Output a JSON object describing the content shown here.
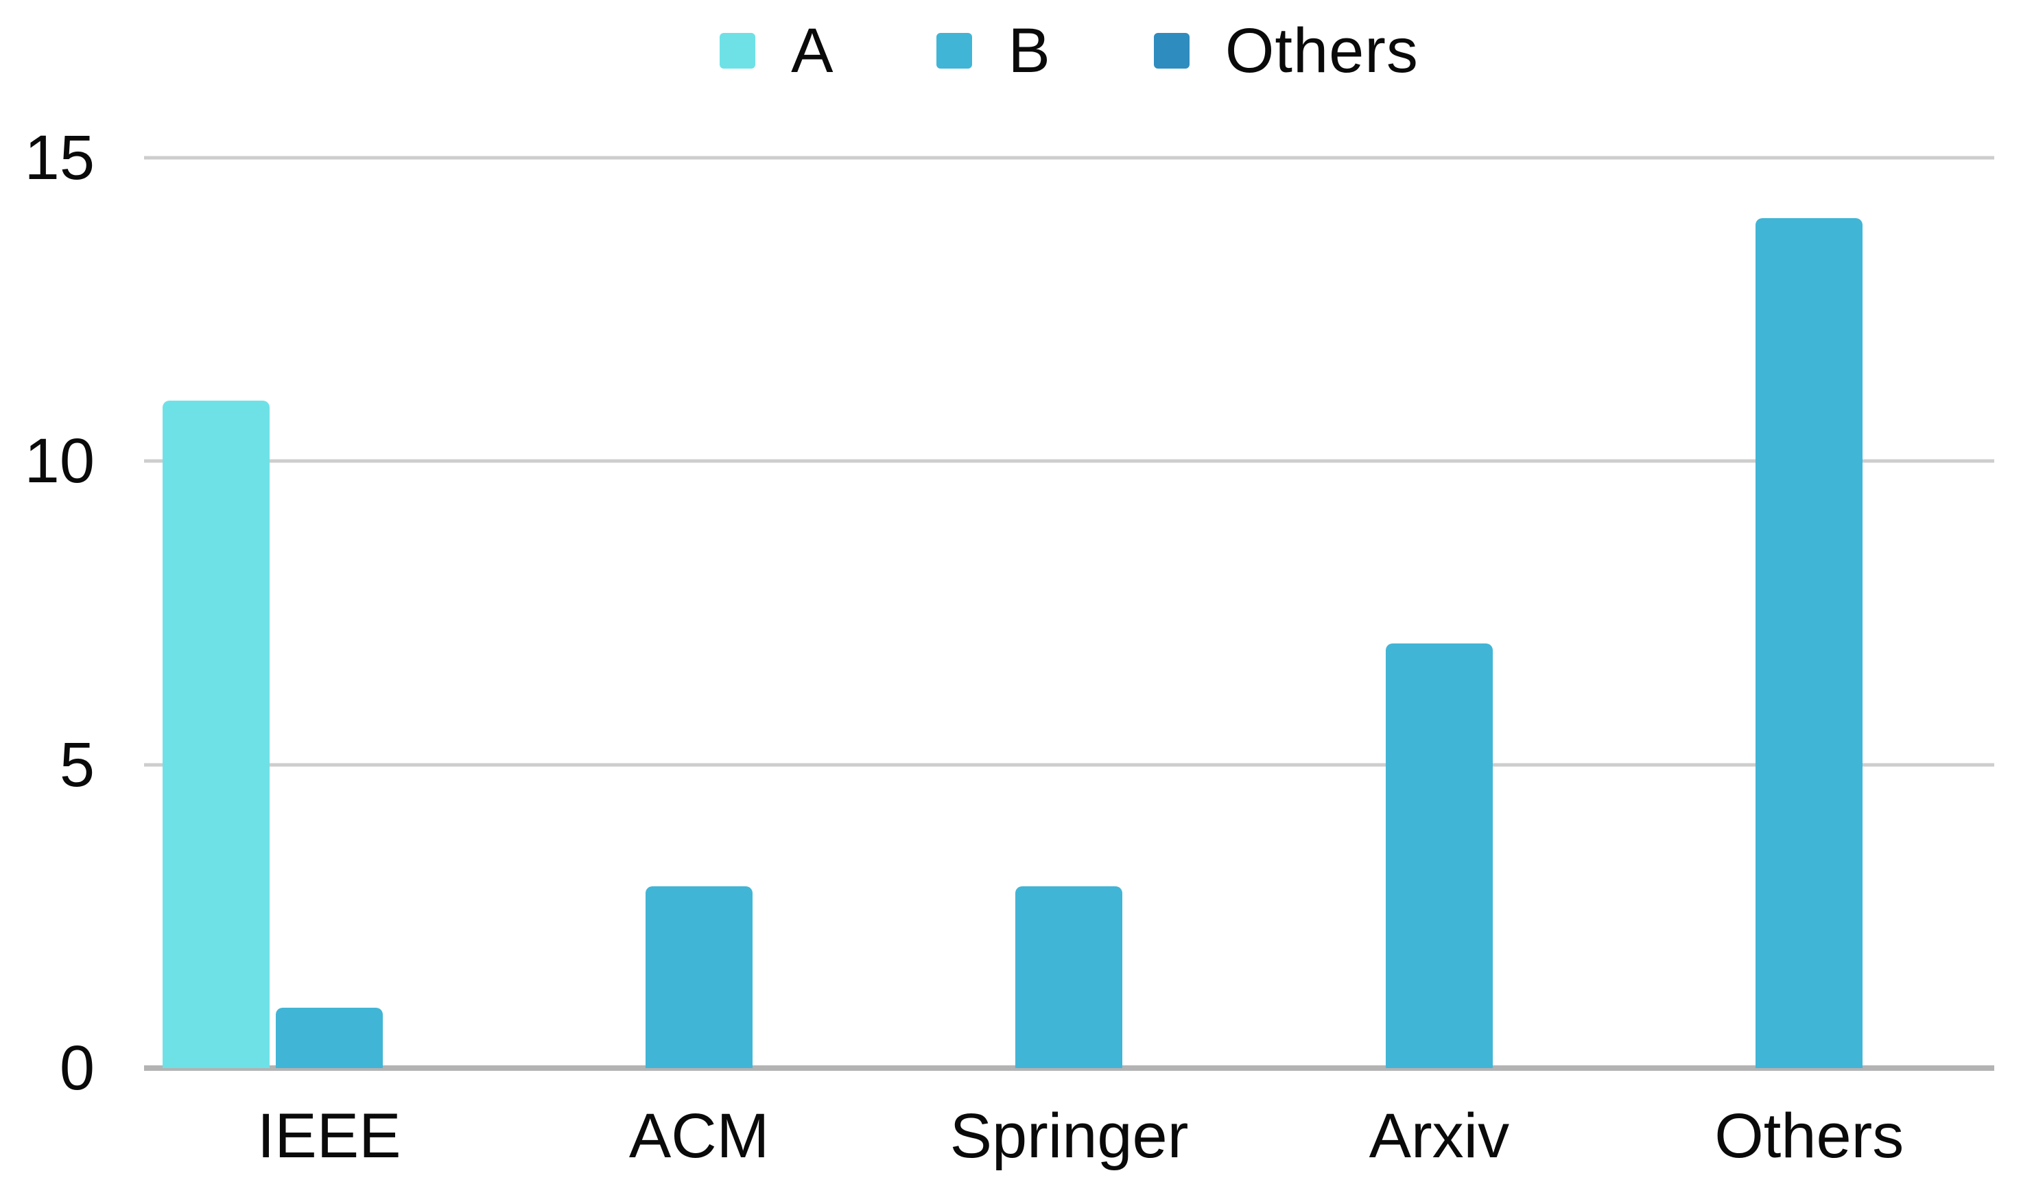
{
  "chart_data": {
    "type": "bar",
    "title": "",
    "xlabel": "",
    "ylabel": "",
    "categories": [
      "IEEE",
      "ACM",
      "Springer",
      "Arxiv",
      "Others"
    ],
    "series": [
      {
        "name": "A",
        "color": "#6ee1e7",
        "values": [
          11,
          0,
          0,
          0,
          0
        ]
      },
      {
        "name": "B",
        "color": "#41b5d5",
        "values": [
          1,
          3,
          3,
          7,
          14
        ]
      },
      {
        "name": "Others",
        "color": "#2f8cbf",
        "values": [
          0,
          0,
          0,
          0,
          0
        ]
      }
    ],
    "ylim": [
      0,
      15
    ],
    "yticks": [
      15,
      10,
      5,
      0
    ],
    "grid": "horizontal-only",
    "legend_position": "top-center",
    "colors": {
      "gridline": "#cdcdcd",
      "axis_line": "#b3b3b3",
      "text": "#0a0a0a",
      "background": "#ffffff"
    }
  }
}
